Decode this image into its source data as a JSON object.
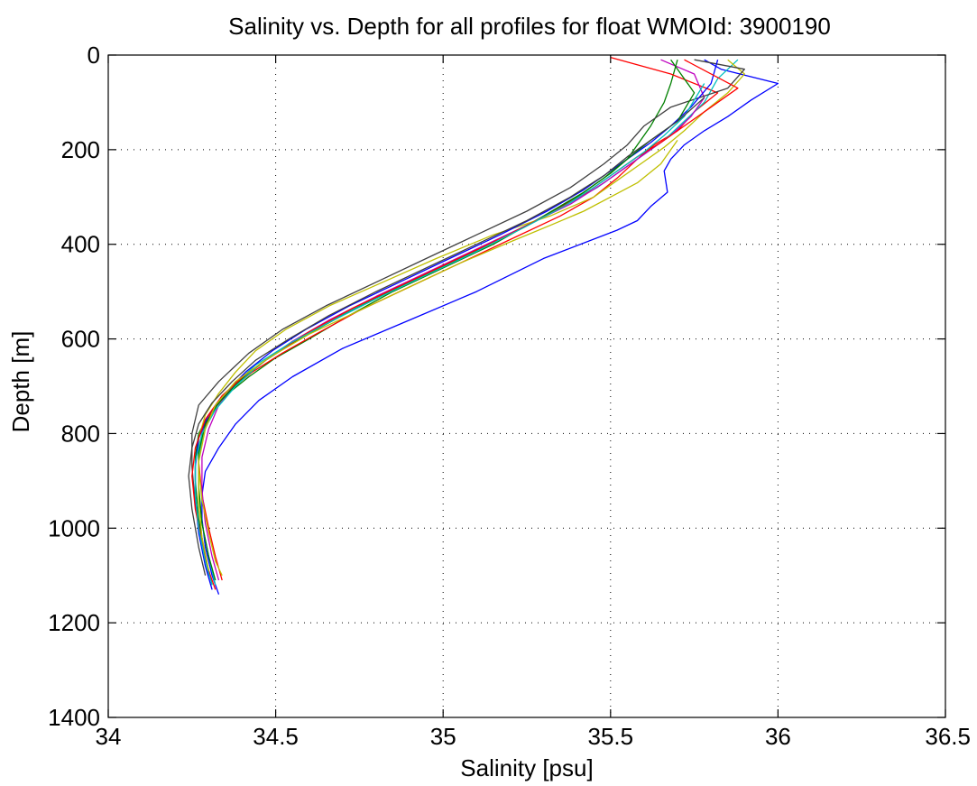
{
  "chart_data": {
    "type": "line",
    "title": "Salinity vs. Depth for all profiles for float WMOId: 3900190",
    "xlabel": "Salinity [psu]",
    "ylabel": "Depth [m]",
    "xlim": [
      34,
      36.5
    ],
    "ylim": [
      0,
      1400
    ],
    "y_reversed": true,
    "grid": true,
    "grid_style": "dotted",
    "xticks": [
      34,
      34.5,
      35,
      35.5,
      36,
      36.5
    ],
    "xtick_labels": [
      "34",
      "34.5",
      "35",
      "35.5",
      "36",
      "36.5"
    ],
    "yticks": [
      0,
      200,
      400,
      600,
      800,
      1000,
      1200,
      1400
    ],
    "ytick_labels": [
      "0",
      "200",
      "400",
      "600",
      "800",
      "1000",
      "1200",
      "1400"
    ],
    "colors": [
      "#0000ff",
      "#008000",
      "#ff0000",
      "#00bfbf",
      "#bf00bf",
      "#bfbf00",
      "#404040"
    ],
    "series": [
      {
        "color": "#0000ff",
        "salinity": [
          35.78,
          35.83,
          36.0,
          35.92,
          35.85,
          35.78,
          35.72,
          35.68,
          35.66,
          35.67,
          35.62,
          35.58,
          35.52,
          35.3,
          35.1,
          34.9,
          34.7,
          34.55,
          34.45,
          34.38,
          34.33,
          34.29,
          34.28,
          34.28,
          34.29,
          34.31,
          34.33
        ],
        "depth": [
          10,
          30,
          60,
          95,
          130,
          160,
          190,
          220,
          245,
          290,
          320,
          350,
          370,
          430,
          500,
          560,
          620,
          680,
          730,
          780,
          830,
          880,
          930,
          980,
          1040,
          1100,
          1140
        ]
      },
      {
        "color": "#008000",
        "salinity": [
          35.7,
          35.68,
          35.66,
          35.62,
          35.58,
          35.55,
          35.5,
          35.42,
          35.3,
          35.15,
          35.0,
          34.85,
          34.72,
          34.6,
          34.5,
          34.42,
          34.35,
          34.3,
          34.27,
          34.26,
          34.26,
          34.27,
          34.29,
          34.31
        ],
        "depth": [
          10,
          60,
          100,
          150,
          190,
          220,
          250,
          290,
          340,
          400,
          450,
          500,
          550,
          600,
          640,
          680,
          720,
          760,
          800,
          850,
          900,
          980,
          1060,
          1120
        ]
      },
      {
        "color": "#ff0000",
        "salinity": [
          35.5,
          35.68,
          35.82,
          35.75,
          35.7,
          35.63,
          35.58,
          35.52,
          35.45,
          35.35,
          35.2,
          35.05,
          34.9,
          34.75,
          34.62,
          34.52,
          34.43,
          34.36,
          34.31,
          34.28,
          34.27,
          34.28,
          34.3,
          34.32,
          34.34
        ],
        "depth": [
          5,
          40,
          80,
          120,
          160,
          190,
          220,
          260,
          300,
          340,
          390,
          440,
          490,
          540,
          590,
          630,
          670,
          710,
          750,
          800,
          860,
          930,
          1000,
          1060,
          1110
        ]
      },
      {
        "color": "#00bfbf",
        "salinity": [
          35.88,
          35.82,
          35.78,
          35.72,
          35.66,
          35.6,
          35.54,
          35.46,
          35.36,
          35.22,
          35.08,
          34.93,
          34.78,
          34.64,
          34.53,
          34.44,
          34.37,
          34.32,
          34.29,
          34.27,
          34.27,
          34.28,
          34.3,
          34.32
        ],
        "depth": [
          10,
          50,
          100,
          140,
          180,
          210,
          240,
          280,
          320,
          370,
          420,
          470,
          520,
          570,
          615,
          655,
          700,
          740,
          790,
          850,
          920,
          990,
          1060,
          1120
        ]
      },
      {
        "color": "#bf00bf",
        "salinity": [
          35.65,
          35.75,
          35.78,
          35.74,
          35.68,
          35.61,
          35.55,
          35.48,
          35.38,
          35.25,
          35.1,
          34.95,
          34.8,
          34.66,
          34.55,
          34.46,
          34.38,
          34.33,
          34.3,
          34.28,
          34.28,
          34.29,
          34.31,
          34.33
        ],
        "depth": [
          10,
          40,
          90,
          130,
          170,
          205,
          235,
          270,
          315,
          360,
          410,
          460,
          510,
          560,
          605,
          650,
          695,
          740,
          790,
          850,
          920,
          990,
          1060,
          1110
        ]
      },
      {
        "color": "#bfbf00",
        "salinity": [
          35.85,
          35.9,
          35.85,
          35.78,
          35.72,
          35.66,
          35.6,
          35.53,
          35.45,
          35.32,
          35.15,
          34.98,
          34.82,
          34.66,
          34.53,
          34.44,
          34.38,
          34.33,
          34.29,
          34.27,
          34.27,
          34.28,
          34.3,
          34.32,
          34.34
        ],
        "depth": [
          10,
          40,
          80,
          120,
          160,
          195,
          225,
          260,
          300,
          340,
          380,
          430,
          480,
          530,
          580,
          625,
          670,
          715,
          760,
          810,
          870,
          940,
          1010,
          1070,
          1100
        ]
      },
      {
        "color": "#404040",
        "salinity": [
          35.75,
          35.9,
          35.85,
          35.68,
          35.6,
          35.55,
          35.48,
          35.38,
          35.25,
          35.1,
          34.95,
          34.8,
          34.65,
          34.52,
          34.42,
          34.33,
          34.27,
          34.25,
          34.25,
          34.26,
          34.28,
          34.3
        ],
        "depth": [
          10,
          30,
          70,
          110,
          150,
          190,
          230,
          280,
          330,
          380,
          430,
          480,
          530,
          580,
          630,
          690,
          740,
          800,
          870,
          950,
          1030,
          1100
        ]
      },
      {
        "color": "#0000ff",
        "salinity": [
          35.82,
          35.8,
          35.74,
          35.68,
          35.62,
          35.56,
          35.5,
          35.42,
          35.31,
          35.17,
          35.02,
          34.87,
          34.72,
          34.59,
          34.49,
          34.41,
          34.35,
          34.3,
          34.27,
          34.26,
          34.26,
          34.27,
          34.29,
          34.31
        ],
        "depth": [
          10,
          60,
          110,
          150,
          185,
          215,
          245,
          285,
          330,
          380,
          430,
          480,
          530,
          580,
          625,
          670,
          715,
          760,
          810,
          870,
          940,
          1010,
          1080,
          1130
        ]
      },
      {
        "color": "#008000",
        "salinity": [
          35.68,
          35.75,
          35.7,
          35.62,
          35.55,
          35.48,
          35.4,
          35.28,
          35.14,
          34.99,
          34.84,
          34.7,
          34.57,
          34.47,
          34.39,
          34.33,
          34.29,
          34.27,
          34.27,
          34.28,
          34.3,
          34.32
        ],
        "depth": [
          10,
          80,
          140,
          180,
          220,
          260,
          300,
          350,
          400,
          450,
          500,
          550,
          600,
          645,
          690,
          735,
          780,
          840,
          910,
          990,
          1060,
          1110
        ]
      },
      {
        "color": "#ff0000",
        "salinity": [
          35.72,
          35.88,
          35.8,
          35.72,
          35.65,
          35.58,
          35.51,
          35.43,
          35.32,
          35.18,
          35.03,
          34.88,
          34.73,
          34.6,
          34.5,
          34.41,
          34.34,
          34.29,
          34.26,
          34.25,
          34.26,
          34.28,
          34.3,
          34.32
        ],
        "depth": [
          10,
          70,
          110,
          150,
          185,
          215,
          250,
          290,
          335,
          385,
          435,
          485,
          535,
          585,
          630,
          675,
          720,
          770,
          830,
          890,
          960,
          1030,
          1090,
          1130
        ]
      },
      {
        "color": "#00bfbf",
        "salinity": [
          35.78,
          35.72,
          35.66,
          35.6,
          35.53,
          35.45,
          35.36,
          35.24,
          35.1,
          34.95,
          34.8,
          34.66,
          34.54,
          34.45,
          34.38,
          34.32,
          34.28,
          34.26,
          34.26,
          34.27,
          34.29,
          34.31
        ],
        "depth": [
          60,
          130,
          170,
          205,
          240,
          280,
          320,
          365,
          415,
          465,
          515,
          565,
          610,
          655,
          700,
          750,
          800,
          860,
          930,
          1000,
          1070,
          1120
        ]
      },
      {
        "color": "#bfbf00",
        "salinity": [
          35.7,
          35.65,
          35.58,
          35.5,
          35.42,
          35.32,
          35.2,
          35.05,
          34.9,
          34.75,
          34.6,
          34.48,
          34.38,
          34.32,
          34.29,
          34.27,
          34.27,
          34.28,
          34.3
        ],
        "depth": [
          180,
          230,
          270,
          300,
          330,
          360,
          395,
          440,
          490,
          540,
          590,
          640,
          690,
          740,
          790,
          860,
          940,
          1020,
          1090
        ]
      },
      {
        "color": "#404040",
        "salinity": [
          35.78,
          35.7,
          35.62,
          35.55,
          35.48,
          35.38,
          35.25,
          35.1,
          34.95,
          34.8,
          34.66,
          34.54,
          34.44,
          34.37,
          34.31,
          34.27,
          34.25,
          34.24,
          34.25,
          34.27,
          34.29
        ],
        "depth": [
          90,
          140,
          180,
          215,
          255,
          300,
          350,
          400,
          450,
          500,
          550,
          600,
          645,
          690,
          735,
          780,
          830,
          890,
          960,
          1040,
          1100
        ]
      }
    ]
  }
}
